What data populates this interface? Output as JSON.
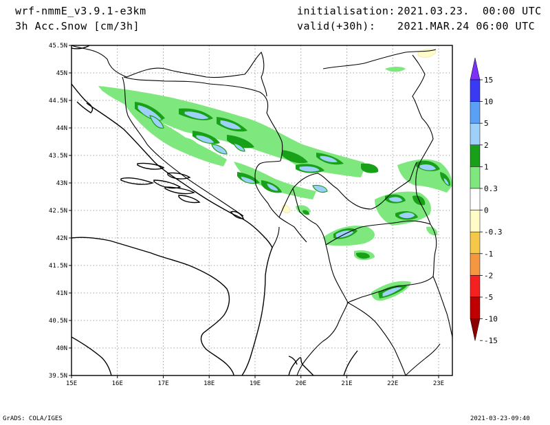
{
  "header": {
    "model": "wrf-nmmE_v3.9.1-e3km",
    "field": "3h Acc.Snow [cm/3h]",
    "init_label": "initialisation:",
    "init_value": "2021.03.23.  00:00 UTC",
    "valid_label": "valid(+30h):",
    "valid_value": "2021.MAR.24 06:00 UTC"
  },
  "map": {
    "lon_ticks": [
      "15E",
      "16E",
      "17E",
      "18E",
      "19E",
      "20E",
      "21E",
      "22E",
      "23E"
    ],
    "lat_ticks": [
      "45.5N",
      "45N",
      "44.5N",
      "44N",
      "43.5N",
      "43N",
      "42.5N",
      "42N",
      "41.5N",
      "41N",
      "40.5N",
      "40N",
      "39.5N"
    ],
    "lon_range": [
      15,
      23.3
    ],
    "lat_range": [
      39.5,
      45.5
    ],
    "grid": "dotted"
  },
  "colorbar": {
    "labels": [
      "15",
      "10",
      "5",
      "2",
      "1",
      "0.3",
      "0",
      "-0.3",
      "-1",
      "-2",
      "-5",
      "-10",
      "-15"
    ],
    "colors": [
      "#7b2ff7",
      "#3a3af5",
      "#5aa0f5",
      "#9fd0fa",
      "#19a019",
      "#7ee87e",
      "#ffffff",
      "#fffcc8",
      "#f5c84a",
      "#f59640",
      "#f52020",
      "#c00000",
      "#8b0000"
    ]
  },
  "snow_colors": {
    "light": "#7ee87e",
    "medium": "#19a019",
    "heavy": "#9fd0fa",
    "heavier": "#5aa0f5",
    "negative_light": "#fffcc8"
  },
  "footer": {
    "left": "GrADS: COLA/IGES",
    "right": "2021-03-23-09:40"
  }
}
